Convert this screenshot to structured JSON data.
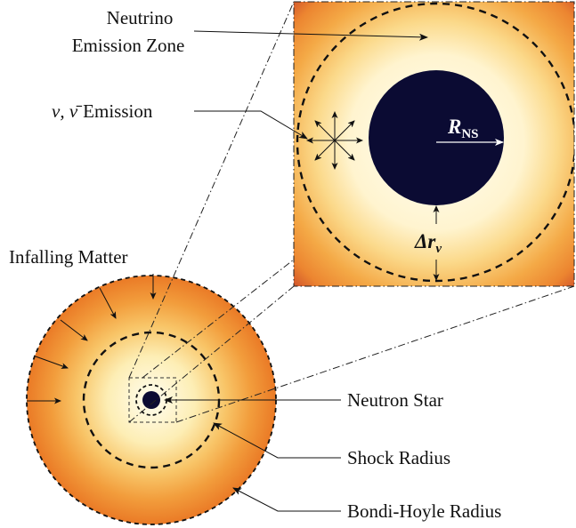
{
  "labels": {
    "neutrino_zone_line1": "Neutrino",
    "neutrino_zone_line2": "Emission Zone",
    "nu_symbol": "ν, ν̄",
    "emission_word": "Emission",
    "r_ns_main": "R",
    "r_ns_sub": "NS",
    "delta_r_main": "Δr",
    "delta_r_sub": "ν",
    "infalling_matter": "Infalling Matter",
    "neutron_star": "Neutron Star",
    "shock_radius": "Shock Radius",
    "bondi_hoyle_radius": "Bondi-Hoyle Radius"
  },
  "colors": {
    "outer_orange": "#ec7a26",
    "inner_glow": "#fffbe6",
    "yellow": "#f9d66f",
    "neutron_star": "#0b0b33",
    "inset_corner": "#c8442a",
    "line": "#111111"
  }
}
